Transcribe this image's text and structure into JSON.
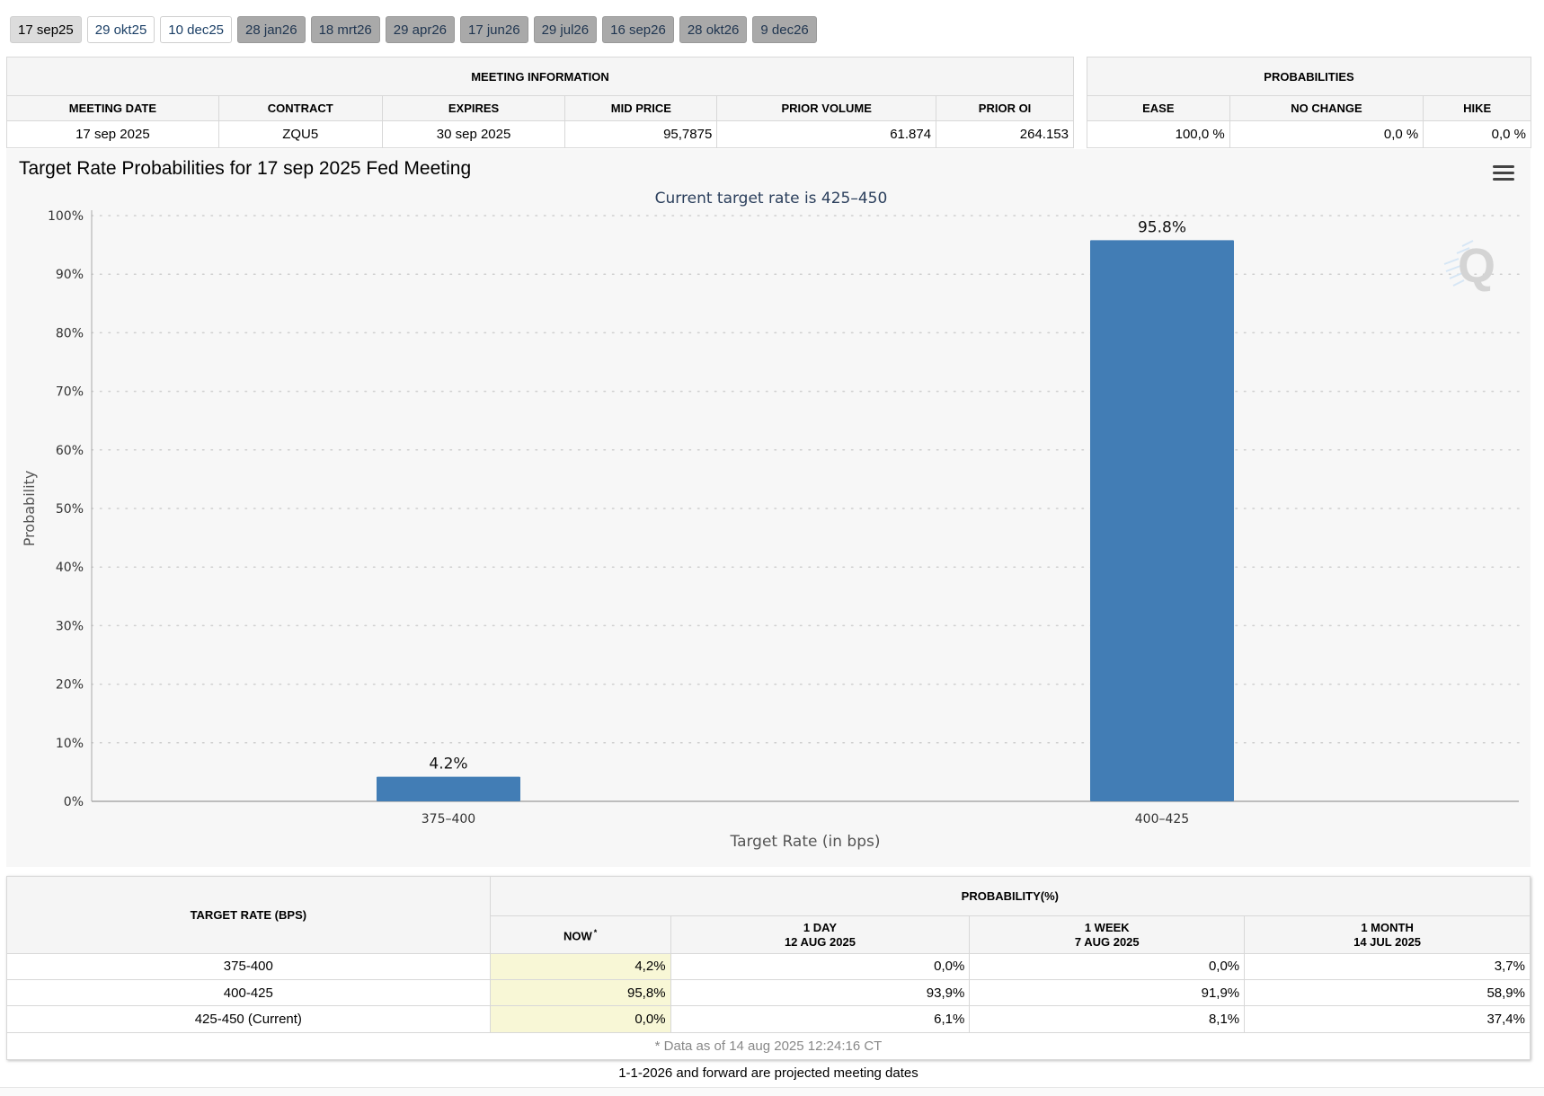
{
  "tabs": [
    {
      "label": "17 sep25",
      "state": "active"
    },
    {
      "label": "29 okt25",
      "state": "near"
    },
    {
      "label": "10 dec25",
      "state": "near"
    },
    {
      "label": "28 jan26",
      "state": "far"
    },
    {
      "label": "18 mrt26",
      "state": "far"
    },
    {
      "label": "29 apr26",
      "state": "far"
    },
    {
      "label": "17 jun26",
      "state": "far"
    },
    {
      "label": "29 jul26",
      "state": "far"
    },
    {
      "label": "16 sep26",
      "state": "far"
    },
    {
      "label": "28 okt26",
      "state": "far"
    },
    {
      "label": "9 dec26",
      "state": "far"
    }
  ],
  "meeting_info": {
    "title": "MEETING INFORMATION",
    "headers": [
      "MEETING DATE",
      "CONTRACT",
      "EXPIRES",
      "MID PRICE",
      "PRIOR VOLUME",
      "PRIOR OI"
    ],
    "values": [
      "17 sep 2025",
      "ZQU5",
      "30 sep 2025",
      "95,7875",
      "61.874",
      "264.153"
    ]
  },
  "probabilities": {
    "title": "PROBABILITIES",
    "headers": [
      "EASE",
      "NO CHANGE",
      "HIKE"
    ],
    "values": [
      "100,0 %",
      "0,0 %",
      "0,0 %"
    ]
  },
  "chart": {
    "title": "Target Rate Probabilities for 17 sep 2025 Fed Meeting",
    "menu_icon": "hamburger-menu-icon",
    "logo_icon": "quikstrike-logo-icon"
  },
  "chart_data": {
    "type": "bar",
    "title": "Target Rate Probabilities for 17 sep 2025 Fed Meeting",
    "subtitle": "Current target rate is 425–450",
    "categories": [
      "375–400",
      "400–425"
    ],
    "values": [
      4.2,
      95.8
    ],
    "data_labels": [
      "4.2%",
      "95.8%"
    ],
    "xlabel": "Target Rate (in bps)",
    "ylabel": "Probability",
    "ylim": [
      0,
      100
    ],
    "yticks": [
      "0%",
      "10%",
      "20%",
      "30%",
      "40%",
      "50%",
      "60%",
      "70%",
      "80%",
      "90%",
      "100%"
    ],
    "grid": true,
    "bar_color": "#427db5"
  },
  "history": {
    "rate_header": "TARGET RATE (BPS)",
    "prob_header": "PROBABILITY(%)",
    "now_label": "NOW",
    "now_marker": "*",
    "columns": [
      {
        "line1": "1 DAY",
        "line2": "12 AUG 2025"
      },
      {
        "line1": "1 WEEK",
        "line2": "7 AUG 2025"
      },
      {
        "line1": "1 MONTH",
        "line2": "14 JUL 2025"
      }
    ],
    "rows": [
      {
        "rate": "375-400",
        "now": "4,2%",
        "day": "0,0%",
        "week": "0,0%",
        "month": "3,7%"
      },
      {
        "rate": "400-425",
        "now": "95,8%",
        "day": "93,9%",
        "week": "91,9%",
        "month": "58,9%"
      },
      {
        "rate": "425-450 (Current)",
        "now": "0,0%",
        "day": "6,1%",
        "week": "8,1%",
        "month": "37,4%"
      }
    ],
    "footnote": "* Data as of 14 aug 2025 12:24:16 CT"
  },
  "footer_note": "1-1-2026 and forward are projected meeting dates"
}
